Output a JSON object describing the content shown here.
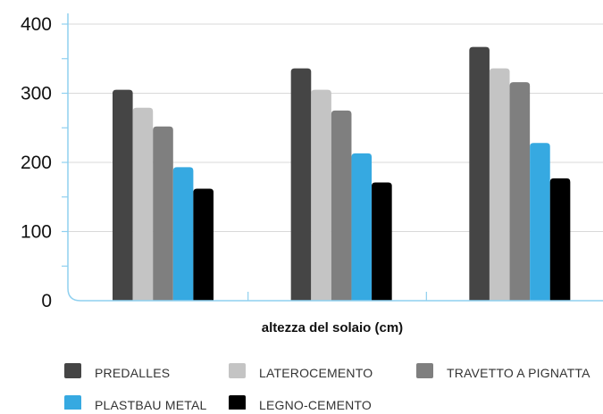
{
  "chart_data": {
    "type": "bar",
    "title": "",
    "xlabel": "altezza del solaio (cm)",
    "ylabel": "",
    "ylim": [
      0,
      400
    ],
    "yticks": [
      "0",
      "100",
      "200",
      "300",
      "400"
    ],
    "categories": [
      "",
      "",
      ""
    ],
    "grid": true,
    "legend_position": "bottom",
    "series": [
      {
        "name": "PREDALLES",
        "color": "#454545",
        "values": [
          305,
          336,
          367
        ]
      },
      {
        "name": "LATEROCEMENTO",
        "color": "#c4c4c4",
        "values": [
          279,
          305,
          336
        ]
      },
      {
        "name": "TRAVETTO A PIGNATTA",
        "color": "#7f7f7f",
        "values": [
          252,
          275,
          316
        ]
      },
      {
        "name": "PLASTBAU METAL",
        "color": "#36a9e1",
        "values": [
          193,
          213,
          228
        ]
      },
      {
        "name": "LEGNO-CEMENTO",
        "color": "#000000",
        "values": [
          162,
          171,
          177
        ]
      }
    ],
    "axis_color": "#8fd0ef",
    "grid_color": "#d9d9d9"
  }
}
